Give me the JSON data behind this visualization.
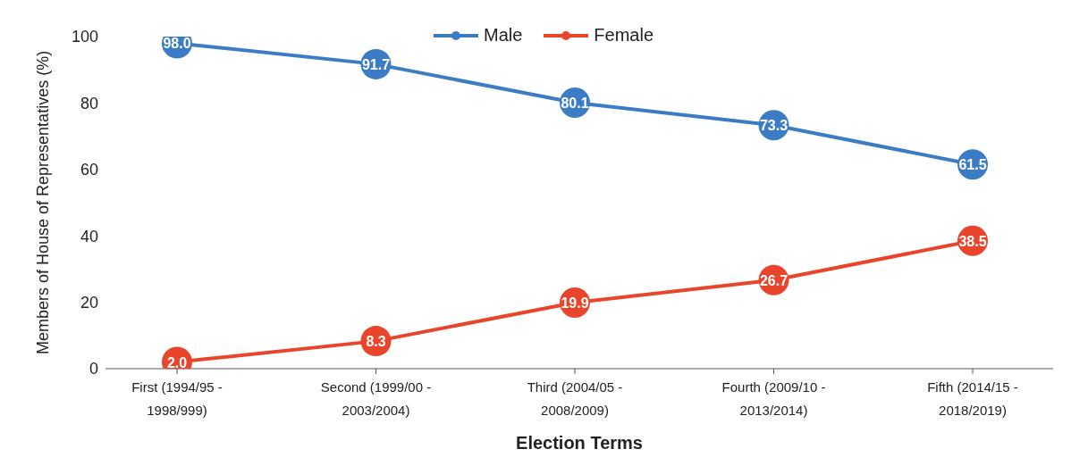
{
  "chart_data": {
    "type": "line",
    "xlabel": "Election Terms",
    "ylabel": "Members of House of Representatives (%)",
    "categories": [
      "First (1994/95 - 1998/999)",
      "Second (1999/00 - 2003/2004)",
      "Third (2004/05 - 2008/2009)",
      "Fourth (2009/10 - 2013/2014)",
      "Fifth (2014/15 - 2018/2019)"
    ],
    "series": [
      {
        "name": "Male",
        "color": "#3b7cc4",
        "values": [
          98.0,
          91.7,
          80.1,
          73.3,
          61.5
        ],
        "value_labels": [
          "98.0",
          "91.7",
          "80.1",
          "73.3",
          "61.5"
        ]
      },
      {
        "name": "Female",
        "color": "#e8452c",
        "values": [
          2.0,
          8.3,
          19.9,
          26.7,
          38.5
        ],
        "value_labels": [
          "2.0",
          "8.3",
          "19.9",
          "26.7",
          "38.5"
        ]
      }
    ],
    "ylim": [
      0,
      100
    ],
    "yticks": [
      0,
      20,
      40,
      60,
      80,
      100
    ],
    "grid": false,
    "legend": "top",
    "marker": "circle"
  }
}
